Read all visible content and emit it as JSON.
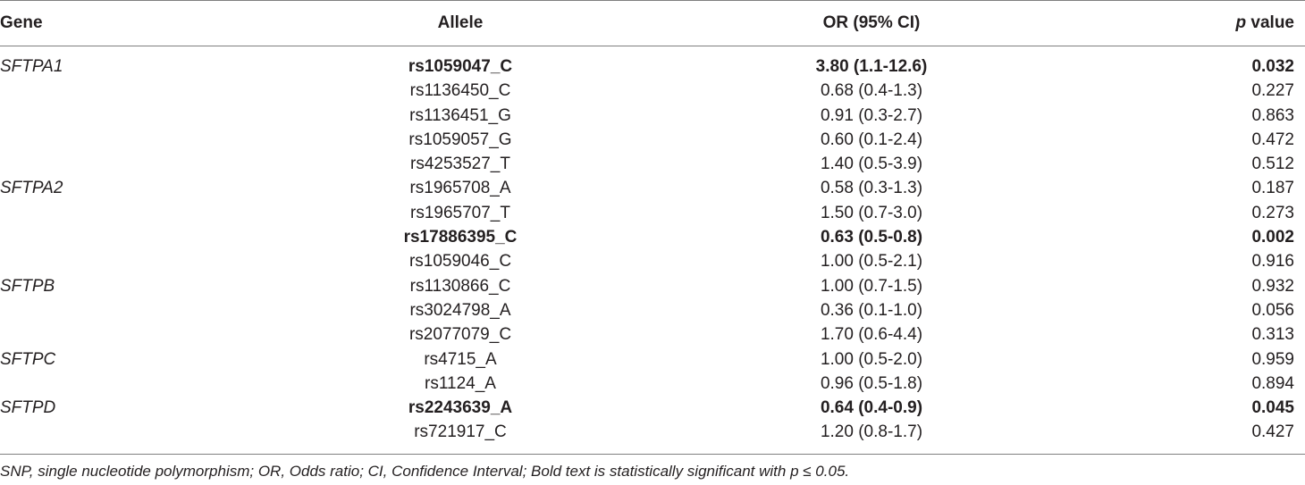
{
  "table": {
    "headers": {
      "gene": "Gene",
      "allele": "Allele",
      "or": "OR (95% CI)",
      "p_italic": "p",
      "p_rest": " value"
    },
    "rows": [
      {
        "gene": "SFTPA1",
        "allele": "rs1059047_C",
        "or": "3.80 (1.1-12.6)",
        "p": "0.032",
        "bold": true
      },
      {
        "gene": "",
        "allele": "rs1136450_C",
        "or": "0.68 (0.4-1.3)",
        "p": "0.227",
        "bold": false
      },
      {
        "gene": "",
        "allele": "rs1136451_G",
        "or": "0.91 (0.3-2.7)",
        "p": "0.863",
        "bold": false
      },
      {
        "gene": "",
        "allele": "rs1059057_G",
        "or": "0.60 (0.1-2.4)",
        "p": "0.472",
        "bold": false
      },
      {
        "gene": "",
        "allele": "rs4253527_T",
        "or": "1.40 (0.5-3.9)",
        "p": "0.512",
        "bold": false
      },
      {
        "gene": "SFTPA2",
        "allele": "rs1965708_A",
        "or": "0.58 (0.3-1.3)",
        "p": "0.187",
        "bold": false
      },
      {
        "gene": "",
        "allele": "rs1965707_T",
        "or": "1.50 (0.7-3.0)",
        "p": "0.273",
        "bold": false
      },
      {
        "gene": "",
        "allele": "rs17886395_C",
        "or": "0.63 (0.5-0.8)",
        "p": "0.002",
        "bold": true
      },
      {
        "gene": "",
        "allele": "rs1059046_C",
        "or": "1.00 (0.5-2.1)",
        "p": "0.916",
        "bold": false
      },
      {
        "gene": "SFTPB",
        "allele": "rs1130866_C",
        "or": "1.00 (0.7-1.5)",
        "p": "0.932",
        "bold": false
      },
      {
        "gene": "",
        "allele": "rs3024798_A",
        "or": "0.36 (0.1-1.0)",
        "p": "0.056",
        "bold": false
      },
      {
        "gene": "",
        "allele": "rs2077079_C",
        "or": "1.70 (0.6-4.4)",
        "p": "0.313",
        "bold": false
      },
      {
        "gene": "SFTPC",
        "allele": "rs4715_A",
        "or": "1.00 (0.5-2.0)",
        "p": "0.959",
        "bold": false
      },
      {
        "gene": "",
        "allele": "rs1124_A",
        "or": "0.96 (0.5-1.8)",
        "p": "0.894",
        "bold": false
      },
      {
        "gene": "SFTPD",
        "allele": "rs2243639_A",
        "or": "0.64 (0.4-0.9)",
        "p": "0.045",
        "bold": true
      },
      {
        "gene": "",
        "allele": "rs721917_C",
        "or": "1.20 (0.8-1.7)",
        "p": "0.427",
        "bold": false
      }
    ]
  },
  "footnote": "SNP, single nucleotide polymorphism; OR, Odds ratio; CI, Confidence Interval; Bold text is statistically significant with p ≤ 0.05."
}
